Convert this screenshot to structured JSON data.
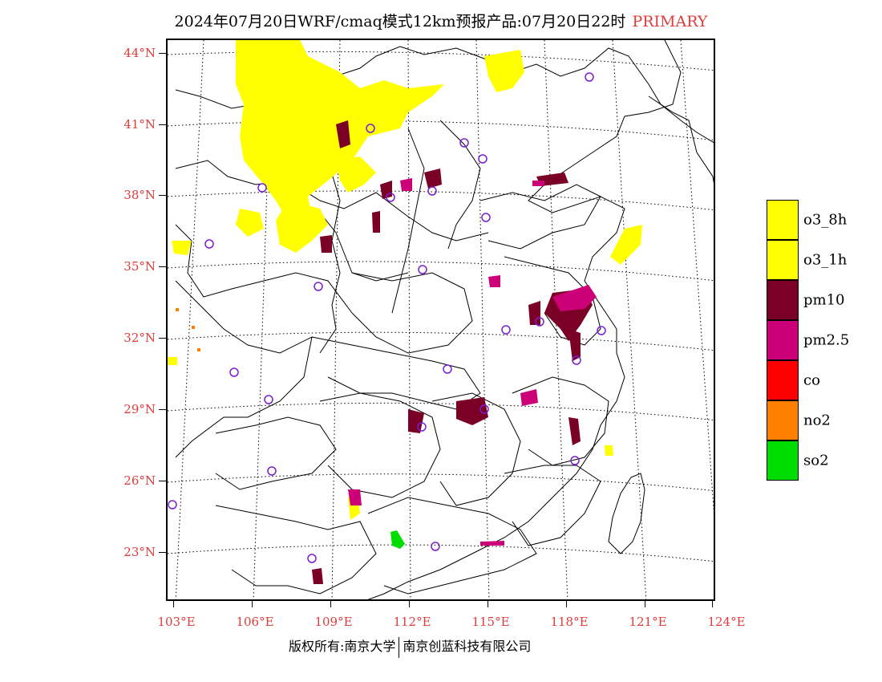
{
  "title": {
    "main": "2024年07月20日WRF/cmaq模式12km预报产品:07月20日22时",
    "tag": "PRIMARY"
  },
  "map": {
    "lat_labels": [
      "44°N",
      "41°N",
      "38°N",
      "35°N",
      "32°N",
      "29°N",
      "26°N",
      "23°N"
    ],
    "lon_labels": [
      "103°E",
      "106°E",
      "109°E",
      "112°E",
      "115°E",
      "118°E",
      "121°E",
      "124°E"
    ]
  },
  "legend": {
    "items": [
      {
        "label": "o3_8h",
        "color": "#ffff00"
      },
      {
        "label": "o3_1h",
        "color": "#ffff00"
      },
      {
        "label": "pm10",
        "color": "#7a0026"
      },
      {
        "label": "pm2.5",
        "color": "#cc0077"
      },
      {
        "label": "co",
        "color": "#ff0000"
      },
      {
        "label": "no2",
        "color": "#ff7f00"
      },
      {
        "label": "so2",
        "color": "#00dd00"
      }
    ]
  },
  "footer": {
    "left": "版权所有:南京大学",
    "right": "南京创蓝科技有限公司"
  },
  "colors": {
    "axis_label": "#e03c3c",
    "o3": "#ffff00",
    "pm10": "#7a0026",
    "pm25": "#cc0077",
    "so2": "#00dd00",
    "no2": "#ff7f00",
    "station": "#7a1fd0"
  }
}
